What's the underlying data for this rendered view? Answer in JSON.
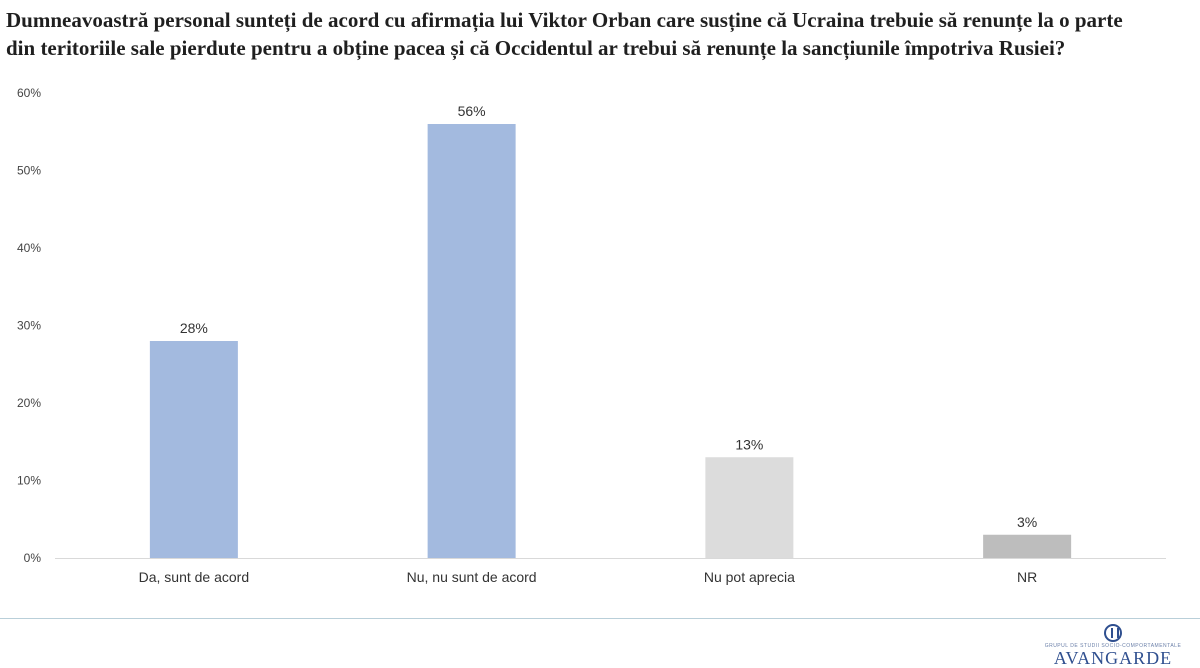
{
  "title": "Dumneavoastră personal sunteți de acord cu afirmația lui Viktor Orban care susține că Ucraina trebuie să renunțe la o parte din teritoriile sale pierdute pentru a obține pacea și că Occidentul ar trebui să renunțe la sancțiunile împotriva Rusiei?",
  "chart_data": {
    "type": "bar",
    "title": "Dumneavoastră personal sunteți de acord cu afirmația lui Viktor Orban care susține că Ucraina trebuie să renunțe la o parte din teritoriile sale pierdute pentru a obține pacea și că Occidentul ar trebui să renunțe la sancțiunile împotriva Rusiei?",
    "categories": [
      "Da, sunt de acord",
      "Nu, nu sunt de acord",
      "Nu pot aprecia",
      "NR"
    ],
    "values": [
      28,
      56,
      13,
      3
    ],
    "data_labels": [
      "28%",
      "56%",
      "13%",
      "3%"
    ],
    "bar_colors": [
      "#a3badf",
      "#a3badf",
      "#dcdcdc",
      "#bdbdbd"
    ],
    "ylim": [
      0,
      60
    ],
    "yticks": [
      0,
      10,
      20,
      30,
      40,
      50,
      60
    ],
    "ytick_labels": [
      "0%",
      "10%",
      "20%",
      "30%",
      "40%",
      "50%",
      "60%"
    ],
    "xlabel": "",
    "ylabel": "",
    "grid": false,
    "legend": "none"
  },
  "logo": {
    "tagline": "GRUPUL DE STUDII SOCIO-COMPORTAMENTALE",
    "name": "AVANGARDE"
  }
}
